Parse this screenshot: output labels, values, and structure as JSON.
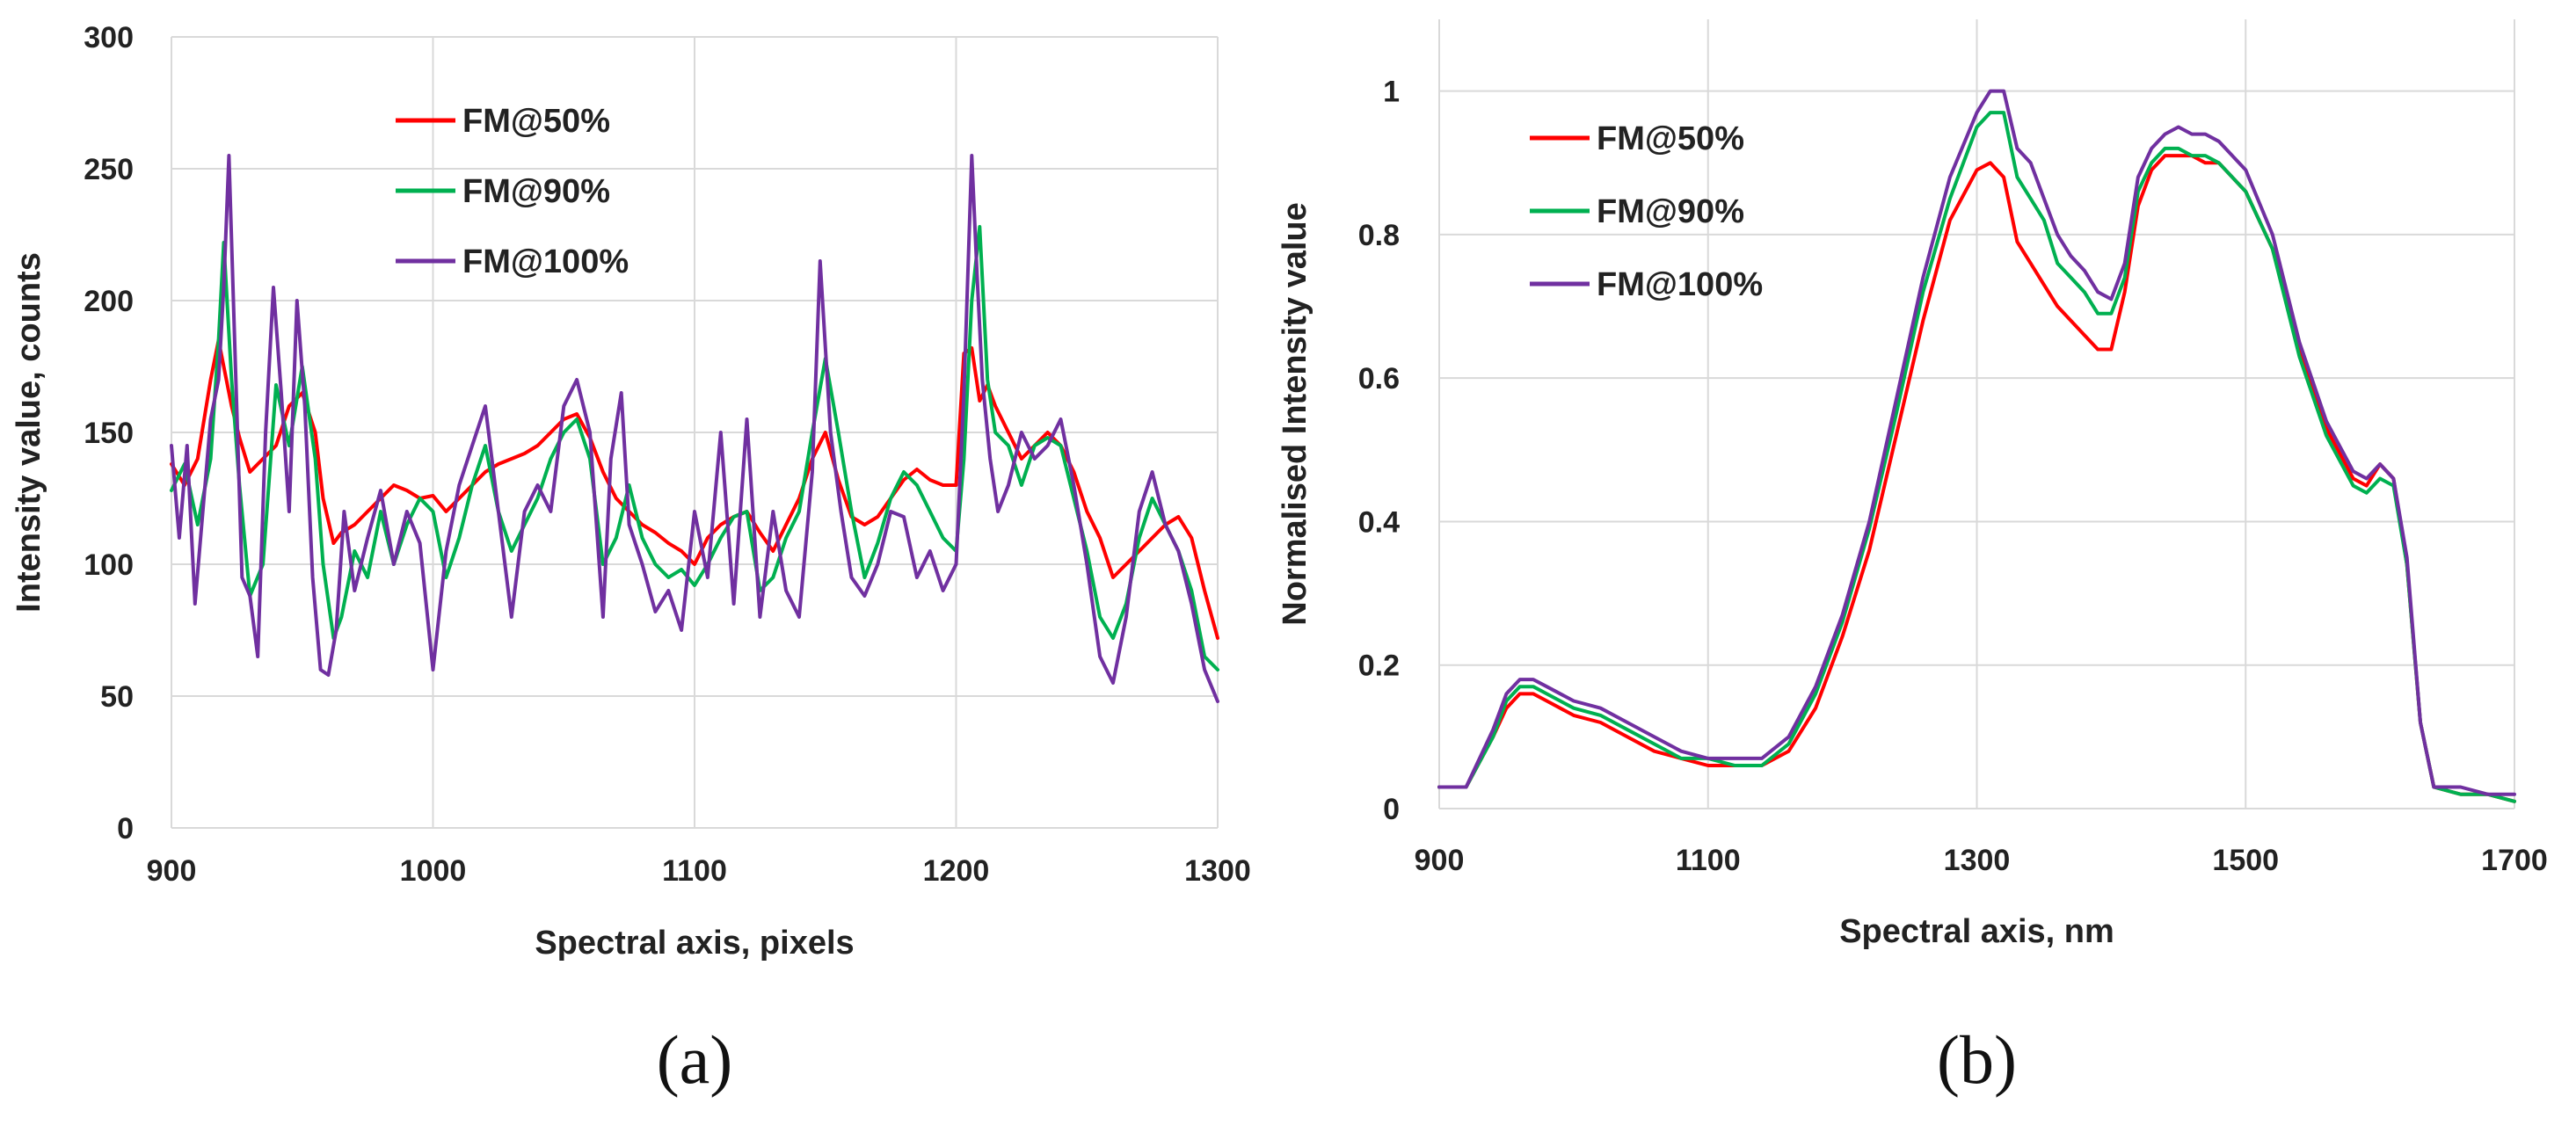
{
  "chart_data": [
    {
      "type": "line",
      "panel_label": "(a)",
      "xlabel": "Spectral axis, pixels",
      "ylabel": "Intensity value, counts",
      "xlim": [
        900,
        1300
      ],
      "ylim": [
        0,
        300
      ],
      "xticks": [
        "900",
        "1000",
        "1100",
        "1200",
        "1300"
      ],
      "yticks": [
        "0",
        "50",
        "100",
        "150",
        "200",
        "250",
        "300"
      ],
      "grid": true,
      "legend_position": "top-left",
      "series": [
        {
          "name": "FM@50%",
          "color": "#ff0000",
          "x": [
            900,
            905,
            910,
            915,
            918,
            920,
            923,
            926,
            930,
            935,
            940,
            945,
            950,
            955,
            958,
            962,
            965,
            970,
            975,
            980,
            985,
            990,
            995,
            1000,
            1005,
            1010,
            1015,
            1020,
            1025,
            1030,
            1035,
            1040,
            1045,
            1050,
            1055,
            1060,
            1065,
            1070,
            1075,
            1080,
            1085,
            1090,
            1095,
            1100,
            1105,
            1110,
            1115,
            1120,
            1125,
            1130,
            1135,
            1140,
            1145,
            1150,
            1155,
            1160,
            1165,
            1170,
            1175,
            1180,
            1185,
            1190,
            1195,
            1200,
            1203,
            1206,
            1209,
            1212,
            1215,
            1220,
            1225,
            1230,
            1235,
            1240,
            1245,
            1250,
            1255,
            1260,
            1265,
            1270,
            1275,
            1280,
            1285,
            1290,
            1295,
            1300
          ],
          "y": [
            138,
            130,
            140,
            170,
            185,
            175,
            160,
            148,
            135,
            140,
            145,
            160,
            165,
            150,
            125,
            108,
            112,
            115,
            120,
            125,
            130,
            128,
            125,
            126,
            120,
            125,
            130,
            135,
            138,
            140,
            142,
            145,
            150,
            155,
            157,
            148,
            135,
            125,
            120,
            115,
            112,
            108,
            105,
            100,
            110,
            115,
            118,
            120,
            112,
            105,
            115,
            125,
            140,
            150,
            132,
            118,
            115,
            118,
            125,
            132,
            136,
            132,
            130,
            130,
            180,
            182,
            162,
            168,
            160,
            150,
            140,
            145,
            150,
            145,
            135,
            120,
            110,
            95,
            100,
            105,
            110,
            115,
            118,
            110,
            90,
            72
          ]
        },
        {
          "name": "FM@90%",
          "color": "#00b050",
          "x": [
            900,
            905,
            910,
            915,
            918,
            920,
            923,
            926,
            930,
            935,
            940,
            945,
            950,
            955,
            958,
            962,
            965,
            970,
            975,
            980,
            985,
            990,
            995,
            1000,
            1005,
            1010,
            1015,
            1020,
            1025,
            1030,
            1035,
            1040,
            1045,
            1050,
            1055,
            1060,
            1065,
            1070,
            1075,
            1080,
            1085,
            1090,
            1095,
            1100,
            1105,
            1110,
            1115,
            1120,
            1125,
            1130,
            1135,
            1140,
            1145,
            1150,
            1155,
            1160,
            1165,
            1170,
            1175,
            1180,
            1185,
            1190,
            1195,
            1200,
            1203,
            1206,
            1209,
            1212,
            1215,
            1220,
            1225,
            1230,
            1235,
            1240,
            1245,
            1250,
            1255,
            1260,
            1265,
            1270,
            1275,
            1280,
            1285,
            1290,
            1295,
            1300
          ],
          "y": [
            128,
            138,
            115,
            140,
            185,
            222,
            170,
            130,
            88,
            100,
            168,
            145,
            175,
            140,
            100,
            72,
            80,
            105,
            95,
            120,
            100,
            115,
            125,
            120,
            95,
            110,
            130,
            145,
            120,
            105,
            115,
            125,
            140,
            150,
            155,
            140,
            100,
            110,
            130,
            110,
            100,
            95,
            98,
            92,
            100,
            110,
            118,
            120,
            90,
            95,
            110,
            120,
            150,
            178,
            150,
            120,
            95,
            108,
            125,
            135,
            130,
            120,
            110,
            105,
            140,
            200,
            228,
            170,
            150,
            145,
            130,
            145,
            148,
            145,
            125,
            105,
            80,
            72,
            85,
            110,
            125,
            115,
            105,
            90,
            65,
            60
          ]
        },
        {
          "name": "FM@100%",
          "color": "#7030a0",
          "x": [
            900,
            903,
            906,
            909,
            912,
            915,
            918,
            920,
            922,
            924,
            927,
            930,
            933,
            936,
            939,
            942,
            945,
            948,
            951,
            954,
            957,
            960,
            963,
            966,
            970,
            975,
            980,
            985,
            990,
            995,
            1000,
            1005,
            1010,
            1015,
            1020,
            1025,
            1030,
            1035,
            1040,
            1045,
            1050,
            1055,
            1060,
            1065,
            1068,
            1072,
            1075,
            1080,
            1085,
            1090,
            1095,
            1100,
            1105,
            1110,
            1115,
            1120,
            1125,
            1130,
            1135,
            1140,
            1145,
            1148,
            1152,
            1156,
            1160,
            1165,
            1170,
            1175,
            1180,
            1185,
            1190,
            1195,
            1200,
            1203,
            1206,
            1208,
            1210,
            1213,
            1216,
            1220,
            1225,
            1230,
            1235,
            1240,
            1245,
            1250,
            1255,
            1260,
            1265,
            1270,
            1275,
            1280,
            1285,
            1290,
            1295,
            1300
          ],
          "y": [
            145,
            110,
            145,
            85,
            120,
            155,
            170,
            205,
            255,
            190,
            95,
            88,
            65,
            150,
            205,
            165,
            120,
            200,
            160,
            95,
            60,
            58,
            75,
            120,
            90,
            110,
            128,
            100,
            120,
            108,
            60,
            105,
            130,
            145,
            160,
            120,
            80,
            120,
            130,
            120,
            160,
            170,
            150,
            80,
            140,
            165,
            115,
            100,
            82,
            90,
            75,
            120,
            95,
            150,
            85,
            155,
            80,
            120,
            90,
            80,
            135,
            215,
            150,
            120,
            95,
            88,
            100,
            120,
            118,
            95,
            105,
            90,
            100,
            165,
            255,
            210,
            170,
            140,
            120,
            130,
            150,
            140,
            145,
            155,
            130,
            100,
            65,
            55,
            80,
            120,
            135,
            115,
            105,
            85,
            60,
            48
          ]
        }
      ]
    },
    {
      "type": "line",
      "panel_label": "(b)",
      "xlabel": "Spectral axis, nm",
      "ylabel": "Normalised Intensity value",
      "xlim": [
        900,
        1700
      ],
      "ylim": [
        0,
        1.1
      ],
      "xticks": [
        "900",
        "1100",
        "1300",
        "1500",
        "1700"
      ],
      "yticks": [
        "0",
        "0.2",
        "0.4",
        "0.6",
        "0.8",
        "1"
      ],
      "grid": true,
      "legend_position": "top-left",
      "series": [
        {
          "name": "FM@50%",
          "color": "#ff0000",
          "x": [
            900,
            920,
            940,
            950,
            960,
            970,
            980,
            1000,
            1020,
            1040,
            1060,
            1080,
            1100,
            1120,
            1140,
            1160,
            1180,
            1200,
            1220,
            1240,
            1260,
            1280,
            1300,
            1310,
            1320,
            1330,
            1340,
            1350,
            1360,
            1370,
            1380,
            1390,
            1400,
            1410,
            1420,
            1430,
            1440,
            1450,
            1460,
            1470,
            1480,
            1500,
            1520,
            1540,
            1560,
            1580,
            1590,
            1600,
            1610,
            1620,
            1630,
            1640,
            1660,
            1680,
            1700
          ],
          "y": [
            0.03,
            0.03,
            0.1,
            0.14,
            0.16,
            0.16,
            0.15,
            0.13,
            0.12,
            0.1,
            0.08,
            0.07,
            0.06,
            0.06,
            0.06,
            0.08,
            0.14,
            0.24,
            0.36,
            0.52,
            0.68,
            0.82,
            0.89,
            0.9,
            0.88,
            0.79,
            0.76,
            0.73,
            0.7,
            0.68,
            0.66,
            0.64,
            0.64,
            0.72,
            0.84,
            0.89,
            0.91,
            0.91,
            0.91,
            0.9,
            0.9,
            0.86,
            0.78,
            0.64,
            0.53,
            0.46,
            0.45,
            0.48,
            0.46,
            0.34,
            0.12,
            0.03,
            0.02,
            0.02,
            0.01
          ]
        },
        {
          "name": "FM@90%",
          "color": "#00b050",
          "x": [
            900,
            920,
            940,
            950,
            960,
            970,
            980,
            1000,
            1020,
            1040,
            1060,
            1080,
            1100,
            1120,
            1140,
            1160,
            1180,
            1200,
            1220,
            1240,
            1260,
            1280,
            1300,
            1310,
            1320,
            1330,
            1340,
            1350,
            1360,
            1370,
            1380,
            1390,
            1400,
            1410,
            1420,
            1430,
            1440,
            1450,
            1460,
            1470,
            1480,
            1500,
            1520,
            1540,
            1560,
            1580,
            1590,
            1600,
            1610,
            1620,
            1630,
            1640,
            1660,
            1680,
            1700
          ],
          "y": [
            0.03,
            0.03,
            0.1,
            0.15,
            0.17,
            0.17,
            0.16,
            0.14,
            0.13,
            0.11,
            0.09,
            0.07,
            0.07,
            0.06,
            0.06,
            0.09,
            0.16,
            0.26,
            0.39,
            0.55,
            0.72,
            0.85,
            0.95,
            0.97,
            0.97,
            0.88,
            0.85,
            0.82,
            0.76,
            0.74,
            0.72,
            0.69,
            0.69,
            0.74,
            0.86,
            0.9,
            0.92,
            0.92,
            0.91,
            0.91,
            0.9,
            0.86,
            0.78,
            0.63,
            0.52,
            0.45,
            0.44,
            0.46,
            0.45,
            0.34,
            0.12,
            0.03,
            0.02,
            0.02,
            0.01
          ]
        },
        {
          "name": "FM@100%",
          "color": "#7030a0",
          "x": [
            900,
            920,
            940,
            950,
            960,
            970,
            980,
            1000,
            1020,
            1040,
            1060,
            1080,
            1100,
            1120,
            1140,
            1160,
            1180,
            1200,
            1220,
            1240,
            1260,
            1280,
            1300,
            1310,
            1320,
            1330,
            1340,
            1350,
            1360,
            1370,
            1380,
            1390,
            1400,
            1410,
            1420,
            1430,
            1440,
            1450,
            1460,
            1470,
            1480,
            1500,
            1520,
            1540,
            1560,
            1580,
            1590,
            1600,
            1610,
            1620,
            1630,
            1640,
            1660,
            1680,
            1700
          ],
          "y": [
            0.03,
            0.03,
            0.11,
            0.16,
            0.18,
            0.18,
            0.17,
            0.15,
            0.14,
            0.12,
            0.1,
            0.08,
            0.07,
            0.07,
            0.07,
            0.1,
            0.17,
            0.27,
            0.4,
            0.57,
            0.74,
            0.88,
            0.97,
            1.0,
            1.0,
            0.92,
            0.9,
            0.85,
            0.8,
            0.77,
            0.75,
            0.72,
            0.71,
            0.76,
            0.88,
            0.92,
            0.94,
            0.95,
            0.94,
            0.94,
            0.93,
            0.89,
            0.8,
            0.65,
            0.54,
            0.47,
            0.46,
            0.48,
            0.46,
            0.35,
            0.12,
            0.03,
            0.03,
            0.02,
            0.02
          ]
        }
      ]
    }
  ]
}
